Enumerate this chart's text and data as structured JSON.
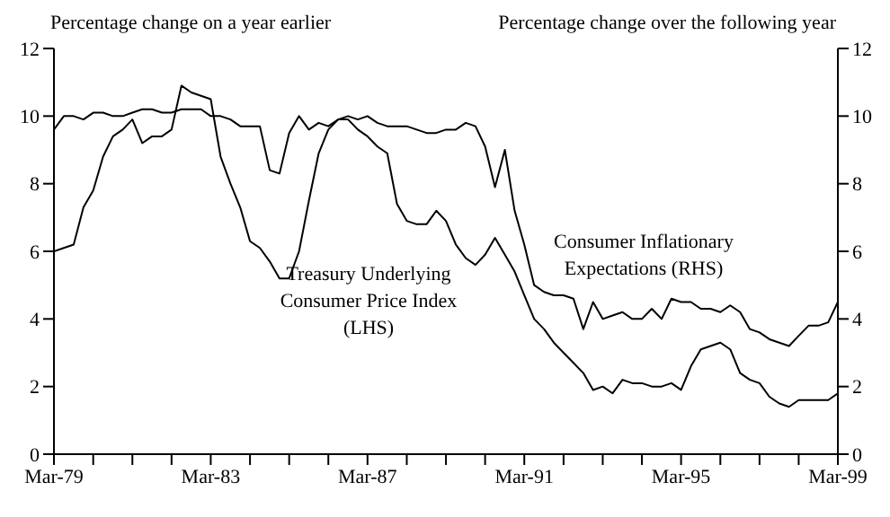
{
  "chart_data": {
    "type": "line",
    "xlabel": null,
    "ylabel": "Percentage change on a year earlier",
    "y2label": "Percentage change over the following year",
    "x": [
      "1979-03",
      "1979-06",
      "1979-09",
      "1979-12",
      "1980-03",
      "1980-06",
      "1980-09",
      "1980-12",
      "1981-03",
      "1981-06",
      "1981-09",
      "1981-12",
      "1982-03",
      "1982-06",
      "1982-09",
      "1982-12",
      "1983-03",
      "1983-06",
      "1983-09",
      "1983-12",
      "1984-03",
      "1984-06",
      "1984-09",
      "1984-12",
      "1985-03",
      "1985-06",
      "1985-09",
      "1985-12",
      "1986-03",
      "1986-06",
      "1986-09",
      "1986-12",
      "1987-03",
      "1987-06",
      "1987-09",
      "1987-12",
      "1988-03",
      "1988-06",
      "1988-09",
      "1988-12",
      "1989-03",
      "1989-06",
      "1989-09",
      "1989-12",
      "1990-03",
      "1990-06",
      "1990-09",
      "1990-12",
      "1991-03",
      "1991-06",
      "1991-09",
      "1991-12",
      "1992-03",
      "1992-06",
      "1992-09",
      "1992-12",
      "1993-03",
      "1993-06",
      "1993-09",
      "1993-12",
      "1994-03",
      "1994-06",
      "1994-09",
      "1994-12",
      "1995-03",
      "1995-06",
      "1995-09",
      "1995-12",
      "1996-03",
      "1996-06",
      "1996-09",
      "1996-12",
      "1997-03",
      "1997-06",
      "1997-09",
      "1997-12",
      "1998-03",
      "1998-06",
      "1998-09",
      "1998-12",
      "1999-03"
    ],
    "series": [
      {
        "name": "Treasury Underlying Consumer Price Index (LHS)",
        "color": "#000000",
        "values": [
          6.0,
          6.1,
          6.2,
          7.3,
          7.8,
          8.8,
          9.4,
          9.6,
          9.9,
          9.2,
          9.4,
          9.4,
          9.6,
          10.9,
          10.7,
          10.6,
          10.5,
          8.8,
          8.0,
          7.3,
          6.3,
          6.1,
          5.7,
          5.2,
          5.2,
          6.0,
          7.5,
          8.9,
          9.6,
          9.9,
          9.9,
          9.6,
          9.4,
          9.1,
          8.9,
          7.4,
          6.9,
          6.8,
          6.8,
          7.2,
          6.9,
          6.2,
          5.8,
          5.6,
          5.9,
          6.4,
          5.9,
          5.4,
          4.7,
          4.0,
          3.7,
          3.3,
          3.0,
          2.7,
          2.4,
          1.9,
          2.0,
          1.8,
          2.2,
          2.1,
          2.1,
          2.0,
          2.0,
          2.1,
          1.9,
          2.6,
          3.1,
          3.2,
          3.3,
          3.1,
          2.4,
          2.2,
          2.1,
          1.7,
          1.5,
          1.4,
          1.6,
          1.6,
          1.6,
          1.6,
          1.8
        ]
      },
      {
        "name": "Consumer Inflationary Expectations (RHS)",
        "color": "#000000",
        "axis": "y2",
        "values": [
          9.6,
          10.0,
          10.0,
          9.9,
          10.1,
          10.1,
          10.0,
          10.0,
          10.1,
          10.2,
          10.2,
          10.1,
          10.1,
          10.2,
          10.2,
          10.2,
          10.0,
          10.0,
          9.9,
          9.7,
          9.7,
          9.7,
          8.4,
          8.3,
          9.5,
          10.0,
          9.6,
          9.8,
          9.7,
          9.9,
          10.0,
          9.9,
          10.0,
          9.8,
          9.7,
          9.7,
          9.7,
          9.6,
          9.5,
          9.5,
          9.6,
          9.6,
          9.8,
          9.7,
          9.1,
          7.9,
          9.0,
          7.2,
          6.2,
          5.0,
          4.8,
          4.7,
          4.7,
          4.6,
          3.7,
          4.5,
          4.0,
          4.1,
          4.2,
          4.0,
          4.0,
          4.3,
          4.0,
          4.6,
          4.5,
          4.5,
          4.3,
          4.3,
          4.2,
          4.4,
          4.2,
          3.7,
          3.6,
          3.4,
          3.3,
          3.2,
          3.5,
          3.8,
          3.8,
          3.9,
          4.5
        ]
      }
    ],
    "xlim": [
      "1979-03",
      "1999-03"
    ],
    "xticks": [
      {
        "value": "1979-03",
        "label": "Mar-79"
      },
      {
        "value": "1980-03",
        "label": null
      },
      {
        "value": "1981-03",
        "label": null
      },
      {
        "value": "1982-03",
        "label": null
      },
      {
        "value": "1983-03",
        "label": "Mar-83"
      },
      {
        "value": "1984-03",
        "label": null
      },
      {
        "value": "1985-03",
        "label": null
      },
      {
        "value": "1986-03",
        "label": null
      },
      {
        "value": "1987-03",
        "label": "Mar-87"
      },
      {
        "value": "1988-03",
        "label": null
      },
      {
        "value": "1989-03",
        "label": null
      },
      {
        "value": "1990-03",
        "label": null
      },
      {
        "value": "1991-03",
        "label": "Mar-91"
      },
      {
        "value": "1992-03",
        "label": null
      },
      {
        "value": "1993-03",
        "label": null
      },
      {
        "value": "1994-03",
        "label": null
      },
      {
        "value": "1995-03",
        "label": "Mar-95"
      },
      {
        "value": "1996-03",
        "label": null
      },
      {
        "value": "1997-03",
        "label": null
      },
      {
        "value": "1998-03",
        "label": null
      },
      {
        "value": "1999-03",
        "label": "Mar-99"
      }
    ],
    "ylim": [
      0,
      12
    ],
    "yticks": [
      0,
      2,
      4,
      6,
      8,
      10,
      12
    ],
    "y2lim": [
      0,
      12
    ],
    "y2ticks": [
      0,
      2,
      4,
      6,
      8,
      10,
      12
    ],
    "grid": false,
    "legend": false,
    "marker": "none",
    "line_style": "solid"
  }
}
